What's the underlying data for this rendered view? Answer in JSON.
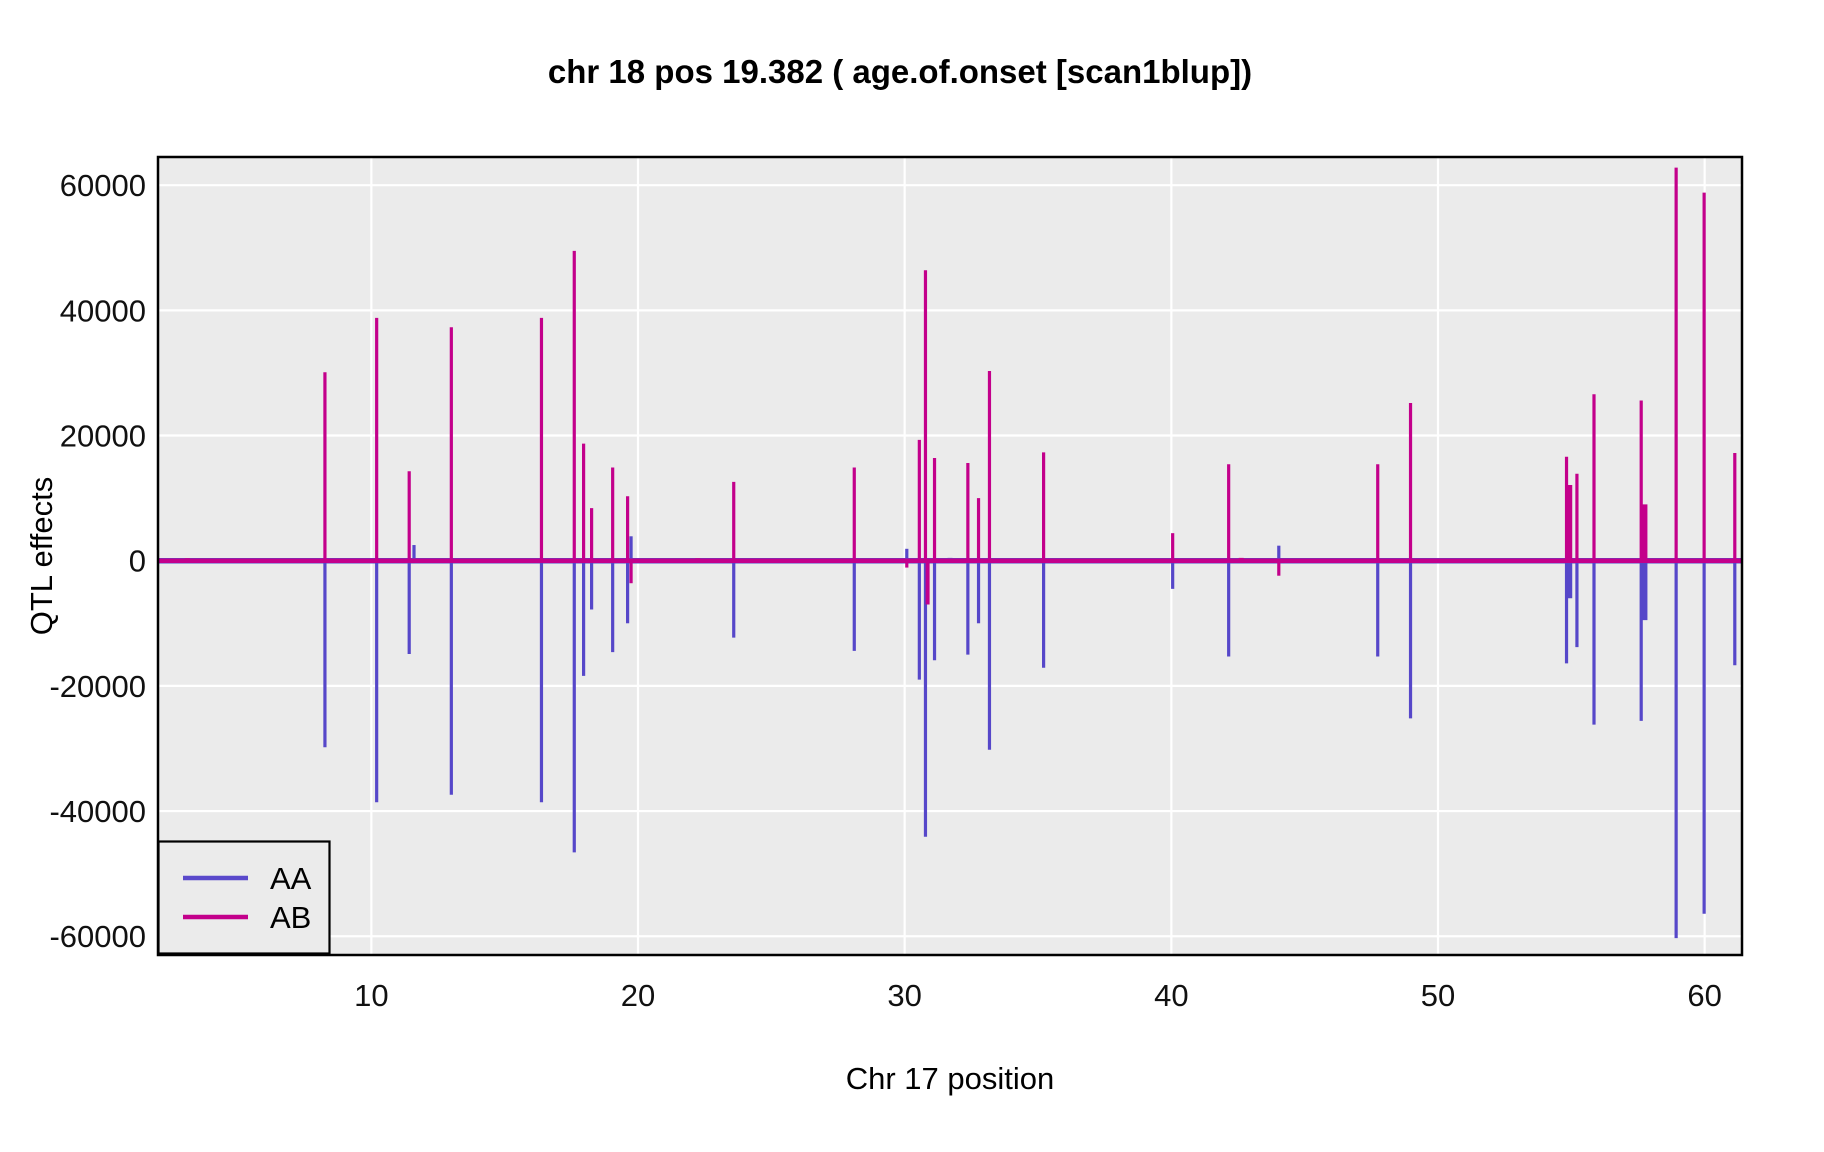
{
  "figure": {
    "title": "chr 18 pos 19.382 ( age.of.onset  [scan1blup])",
    "x_axis": {
      "label": "Chr 17 position",
      "ticks": [
        10,
        20,
        30,
        40,
        50,
        60
      ],
      "range": [
        2.0,
        61.4
      ]
    },
    "y_axis": {
      "label": "QTL effects",
      "ticks": [
        60000,
        40000,
        20000,
        0,
        -20000,
        -40000,
        -60000
      ],
      "range": [
        -63000,
        64500
      ]
    },
    "legend": {
      "position": "bottom-left",
      "entries": [
        {
          "label": "AA",
          "color": "#5A49CB"
        },
        {
          "label": "AB",
          "color": "#C3008B"
        }
      ]
    },
    "colors": {
      "panel_bg": "#EBEBEB",
      "grid": "#FFFFFF",
      "panel_border": "#000000",
      "aa_line": "#5647C9",
      "ab_line": "#C3008B"
    }
  },
  "chart_data": {
    "type": "line",
    "title": "chr 18 pos 19.382 ( age.of.onset  [scan1blup])",
    "xlabel": "Chr 17 position",
    "ylabel": "QTL effects",
    "xlim": [
      2.0,
      61.4
    ],
    "ylim": [
      -63000,
      64500
    ],
    "grid": "major-white-on-gray",
    "legend_position": "bottom-left",
    "series_names": [
      "AA",
      "AB"
    ],
    "baseline_value": 0,
    "spikes_note": "vertical segments from 0 to value; aa = blue series value, ab = magenta series value, w = optional stroke width",
    "spikes": [
      {
        "pos": 3.1,
        "aa": -400,
        "ab": 400,
        "w": 5
      },
      {
        "pos": 8.26,
        "aa": -29800,
        "ab": 30100
      },
      {
        "pos": 10.2,
        "aa": -38600,
        "ab": 38800
      },
      {
        "pos": 11.42,
        "aa": -14900,
        "ab": 14300
      },
      {
        "pos": 11.6,
        "aa": 2500,
        "ab": null
      },
      {
        "pos": 13.0,
        "aa": -37400,
        "ab": 37300
      },
      {
        "pos": 14.55,
        "aa": -300,
        "ab": 350,
        "w": 5
      },
      {
        "pos": 15.4,
        "aa": -250,
        "ab": 300,
        "w": 4
      },
      {
        "pos": 16.38,
        "aa": -38600,
        "ab": 38800
      },
      {
        "pos": 17.61,
        "aa": -46600,
        "ab": 49500
      },
      {
        "pos": 17.96,
        "aa": -18400,
        "ab": 18700
      },
      {
        "pos": 18.26,
        "aa": -7800,
        "ab": 8400
      },
      {
        "pos": 19.05,
        "aa": -14600,
        "ab": 14900
      },
      {
        "pos": 19.61,
        "aa": -10000,
        "ab": 10300
      },
      {
        "pos": 19.74,
        "aa": 3900,
        "ab": -3600
      },
      {
        "pos": 22.24,
        "aa": -300,
        "ab": 400,
        "w": 5
      },
      {
        "pos": 23.59,
        "aa": -12300,
        "ab": 12600
      },
      {
        "pos": 24.9,
        "aa": -250,
        "ab": 300,
        "w": 4
      },
      {
        "pos": 28.11,
        "aa": -14400,
        "ab": 14900
      },
      {
        "pos": 28.96,
        "aa": -450,
        "ab": 300,
        "w": 5
      },
      {
        "pos": 30.08,
        "aa": 1900,
        "ab": -1100
      },
      {
        "pos": 30.55,
        "aa": -19000,
        "ab": 19300
      },
      {
        "pos": 30.78,
        "aa": -44100,
        "ab": 46400
      },
      {
        "pos": 30.86,
        "aa": null,
        "ab": -7000,
        "w": 4
      },
      {
        "pos": 31.12,
        "aa": -15900,
        "ab": 16400
      },
      {
        "pos": 31.7,
        "aa": 450,
        "ab": -300,
        "w": 5
      },
      {
        "pos": 32.37,
        "aa": -15000,
        "ab": 15600
      },
      {
        "pos": 32.77,
        "aa": -10000,
        "ab": 10000
      },
      {
        "pos": 33.18,
        "aa": -30200,
        "ab": 30300
      },
      {
        "pos": 35.21,
        "aa": -17100,
        "ab": 17300
      },
      {
        "pos": 40.05,
        "aa": -4500,
        "ab": 4400
      },
      {
        "pos": 42.15,
        "aa": -15300,
        "ab": 15400
      },
      {
        "pos": 42.62,
        "aa": -300,
        "ab": 450,
        "w": 5
      },
      {
        "pos": 44.03,
        "aa": 2400,
        "ab": -2400
      },
      {
        "pos": 47.74,
        "aa": -15300,
        "ab": 15400
      },
      {
        "pos": 48.97,
        "aa": -25200,
        "ab": 25200
      },
      {
        "pos": 54.82,
        "aa": -16400,
        "ab": 16600
      },
      {
        "pos": 54.94,
        "aa": -6000,
        "ab": 12100,
        "w": 5
      },
      {
        "pos": 55.21,
        "aa": -13800,
        "ab": 13900
      },
      {
        "pos": 55.85,
        "aa": -26200,
        "ab": 26600
      },
      {
        "pos": 57.62,
        "aa": -25600,
        "ab": 25600
      },
      {
        "pos": 57.76,
        "aa": -9500,
        "ab": 9000,
        "w": 5
      },
      {
        "pos": 58.93,
        "aa": -60300,
        "ab": 62800
      },
      {
        "pos": 59.98,
        "aa": -56400,
        "ab": 58800
      },
      {
        "pos": 61.13,
        "aa": -16700,
        "ab": 17200
      }
    ]
  }
}
